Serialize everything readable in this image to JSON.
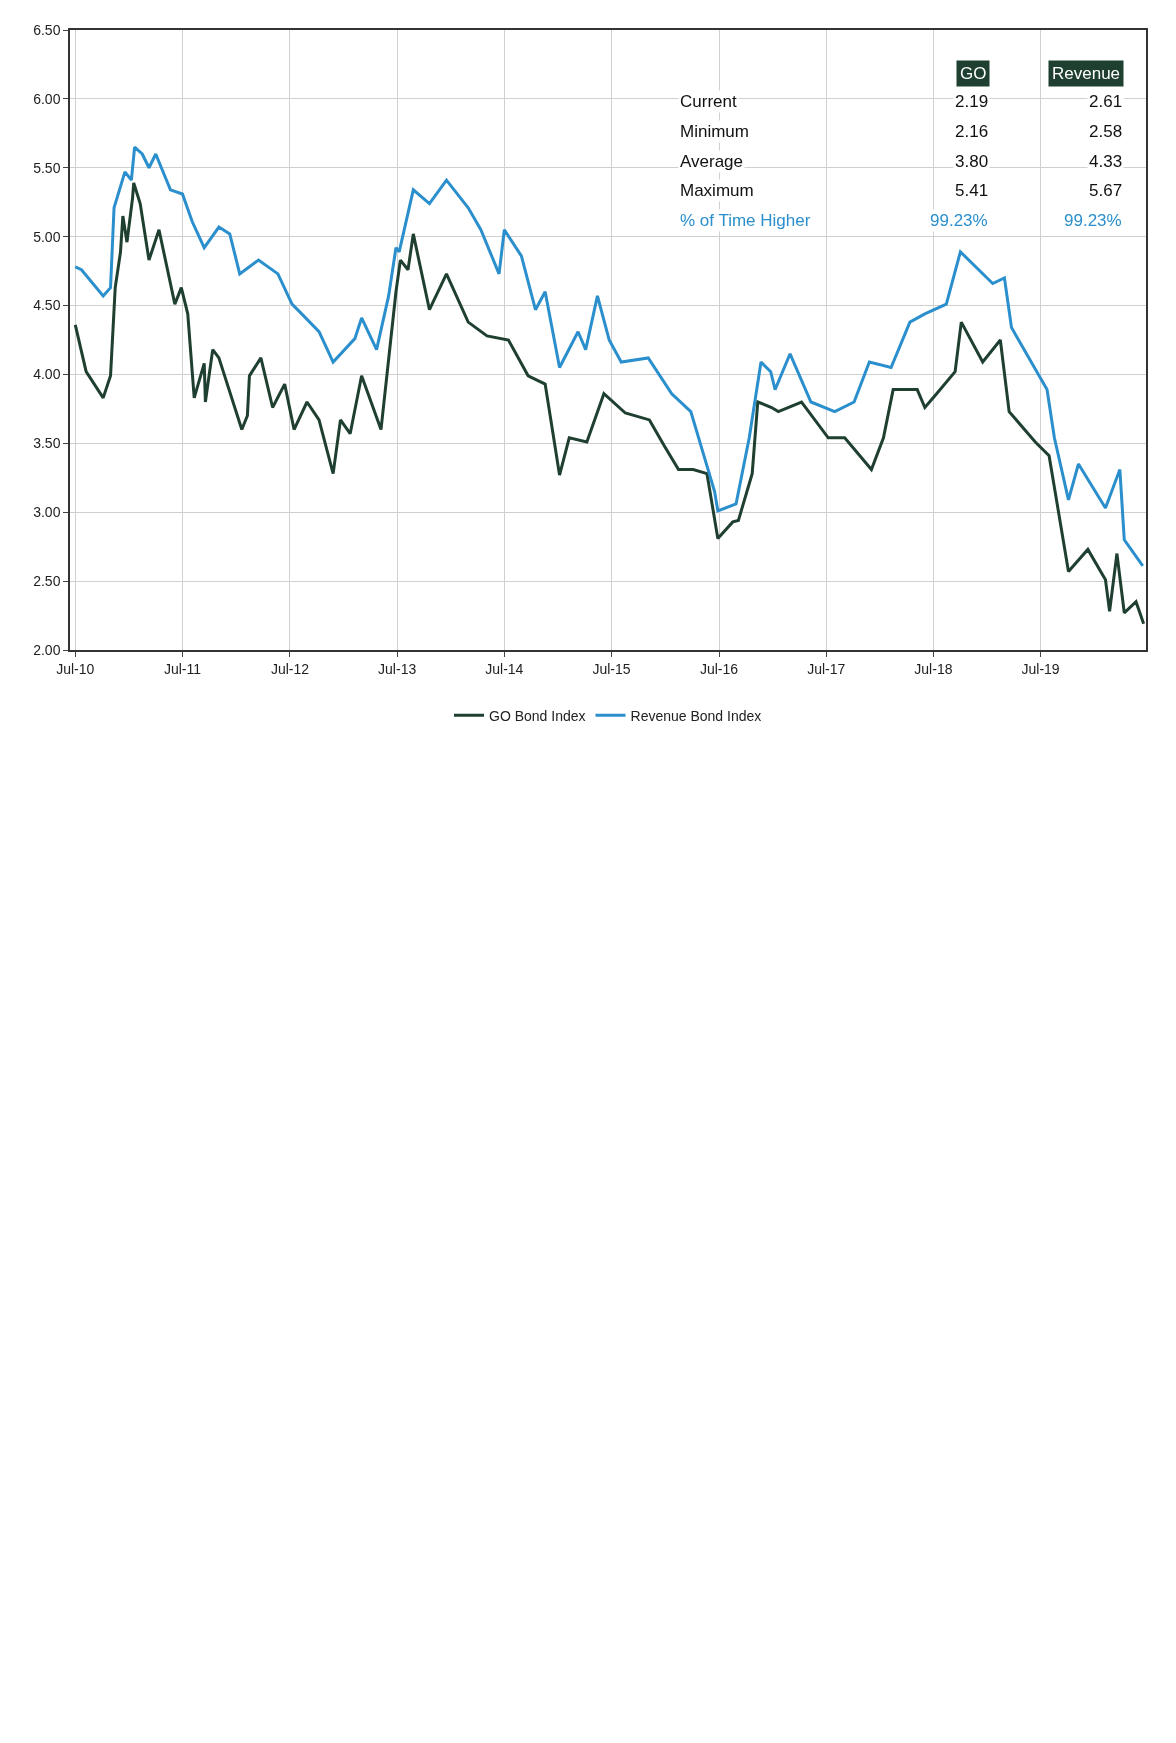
{
  "chart_data": {
    "type": "line",
    "series": [
      {
        "name": "GO Bond Index",
        "color": "#1f4030",
        "x": [
          "2010-07-01",
          "2010-08-07",
          "2010-10-04",
          "2010-10-29",
          "2010-11-14",
          "2010-12-02",
          "2010-12-10",
          "2010-12-24",
          "2011-01-12",
          "2011-01-16",
          "2011-02-07",
          "2011-03-09",
          "2011-04-12",
          "2011-06-05",
          "2011-06-27",
          "2011-07-19",
          "2011-08-10",
          "2011-09-13",
          "2011-09-17",
          "2011-10-12",
          "2011-11-02",
          "2012-01-19",
          "2012-02-07",
          "2012-02-14",
          "2012-03-24",
          "2012-05-03",
          "2012-06-13",
          "2012-07-15",
          "2012-08-28",
          "2012-10-08",
          "2012-11-25",
          "2012-12-20",
          "2013-01-22",
          "2013-03-02",
          "2013-05-07",
          "2013-06-27",
          "2013-07-12",
          "2013-08-07",
          "2013-08-25",
          "2013-10-19",
          "2013-12-16",
          "2014-02-28",
          "2014-05-03",
          "2014-07-15",
          "2014-09-20",
          "2014-11-17",
          "2015-01-05",
          "2015-02-07",
          "2015-04-08",
          "2015-06-05",
          "2015-08-17",
          "2015-11-07",
          "2015-12-28",
          "2016-02-14",
          "2016-04-04",
          "2016-05-21",
          "2016-06-27",
          "2016-08-17",
          "2016-09-05",
          "2016-10-22",
          "2016-11-10",
          "2016-12-27",
          "2017-01-19",
          "2017-04-08",
          "2017-07-08",
          "2017-09-02",
          "2017-12-02",
          "2018-01-12",
          "2018-02-14",
          "2018-05-07",
          "2018-06-02",
          "2018-07-12",
          "2018-09-13",
          "2018-10-04",
          "2018-12-16",
          "2019-02-14",
          "2019-03-16",
          "2019-06-13",
          "2019-07-30",
          "2019-10-04",
          "2019-12-09",
          "2020-02-07",
          "2020-02-21",
          "2020-03-17",
          "2020-04-11",
          "2020-05-21",
          "2020-06-16"
        ],
        "values": [
          4.36,
          4.02,
          3.83,
          3.99,
          4.63,
          4.89,
          5.15,
          4.96,
          5.28,
          5.39,
          5.24,
          4.83,
          5.05,
          4.51,
          4.63,
          4.44,
          3.83,
          4.08,
          3.8,
          4.18,
          4.12,
          3.6,
          3.7,
          3.99,
          4.12,
          3.76,
          3.93,
          3.6,
          3.8,
          3.67,
          3.28,
          3.67,
          3.57,
          3.99,
          3.6,
          4.6,
          4.83,
          4.76,
          5.02,
          4.47,
          4.73,
          4.38,
          4.28,
          4.25,
          3.99,
          3.93,
          3.27,
          3.54,
          3.51,
          3.86,
          3.72,
          3.67,
          3.48,
          3.31,
          3.31,
          3.28,
          2.81,
          2.93,
          2.94,
          3.28,
          3.8,
          3.76,
          3.73,
          3.8,
          3.54,
          3.54,
          3.31,
          3.54,
          3.89,
          3.89,
          3.76,
          3.86,
          4.02,
          4.38,
          4.09,
          4.25,
          3.73,
          3.51,
          3.41,
          2.57,
          2.73,
          2.51,
          2.28,
          2.7,
          2.27,
          2.35,
          2.19
        ]
      },
      {
        "name": "Revenue Bond Index",
        "color": "#2a8fcc",
        "x": [
          "2010-07-01",
          "2010-07-22",
          "2010-10-04",
          "2010-10-29",
          "2010-11-10",
          "2010-12-17",
          "2011-01-08",
          "2011-01-19",
          "2011-02-14",
          "2011-03-09",
          "2011-04-01",
          "2011-05-21",
          "2011-07-01",
          "2011-08-03",
          "2011-09-13",
          "2011-11-02",
          "2011-12-09",
          "2012-01-12",
          "2012-03-16",
          "2012-05-21",
          "2012-07-08",
          "2012-08-10",
          "2012-10-08",
          "2012-11-25",
          "2013-02-07",
          "2013-03-02",
          "2013-04-22",
          "2013-06-02",
          "2013-06-27",
          "2013-07-08",
          "2013-08-25",
          "2013-10-19",
          "2013-12-16",
          "2014-02-28",
          "2014-04-12",
          "2014-06-13",
          "2014-07-01",
          "2014-08-28",
          "2014-10-15",
          "2014-11-17",
          "2015-01-05",
          "2015-03-09",
          "2015-04-04",
          "2015-05-14",
          "2015-06-23",
          "2015-08-03",
          "2015-11-03",
          "2016-01-22",
          "2016-03-27",
          "2016-06-16",
          "2016-06-27",
          "2016-08-28",
          "2016-10-12",
          "2016-11-21",
          "2016-12-24",
          "2017-01-08",
          "2017-02-28",
          "2017-05-10",
          "2017-07-30",
          "2017-10-04",
          "2017-11-25",
          "2018-02-07",
          "2018-04-12",
          "2018-06-02",
          "2018-08-14",
          "2018-10-01",
          "2019-01-19",
          "2019-02-28",
          "2019-03-24",
          "2019-07-23",
          "2019-08-17",
          "2019-10-04",
          "2019-11-07",
          "2020-02-07",
          "2020-03-27",
          "2020-04-11",
          "2020-06-13"
        ],
        "values": [
          4.78,
          4.76,
          4.57,
          4.63,
          5.21,
          5.47,
          5.41,
          5.65,
          5.6,
          5.5,
          5.6,
          5.34,
          5.31,
          5.11,
          4.92,
          5.07,
          5.02,
          4.73,
          4.83,
          4.73,
          4.51,
          4.44,
          4.31,
          4.09,
          4.26,
          4.41,
          4.18,
          4.57,
          4.92,
          4.89,
          5.34,
          5.24,
          5.41,
          5.21,
          5.05,
          4.73,
          5.05,
          4.86,
          4.47,
          4.6,
          4.05,
          4.31,
          4.18,
          4.57,
          4.25,
          4.09,
          4.12,
          3.86,
          3.73,
          3.15,
          3.01,
          3.06,
          3.54,
          4.09,
          4.02,
          3.89,
          4.15,
          3.8,
          3.73,
          3.8,
          4.09,
          4.05,
          4.38,
          4.44,
          4.51,
          4.89,
          4.66,
          4.7,
          4.34,
          3.89,
          3.54,
          3.09,
          3.35,
          3.03,
          3.31,
          2.8,
          2.61
        ]
      }
    ],
    "xlim": [
      "2010-06-13",
      "2020-06-24"
    ],
    "xticks": [
      {
        "value": "2010-07-01",
        "label": "Jul-10"
      },
      {
        "value": "2011-07-01",
        "label": "Jul-11"
      },
      {
        "value": "2012-07-01",
        "label": "Jul-12"
      },
      {
        "value": "2013-07-01",
        "label": "Jul-13"
      },
      {
        "value": "2014-07-01",
        "label": "Jul-14"
      },
      {
        "value": "2015-07-01",
        "label": "Jul-15"
      },
      {
        "value": "2016-07-01",
        "label": "Jul-16"
      },
      {
        "value": "2017-07-01",
        "label": "Jul-17"
      },
      {
        "value": "2018-07-01",
        "label": "Jul-18"
      },
      {
        "value": "2019-07-01",
        "label": "Jul-19"
      }
    ],
    "ylim": [
      2.0,
      6.5
    ],
    "yticks": [
      {
        "value": 2,
        "label": "2.00"
      },
      {
        "value": 2.5,
        "label": "2.50"
      },
      {
        "value": 3,
        "label": "3.00"
      },
      {
        "value": 3.5,
        "label": "3.50"
      },
      {
        "value": 4,
        "label": "4.00"
      },
      {
        "value": 4.5,
        "label": "4.50"
      },
      {
        "value": 5,
        "label": "5.00"
      },
      {
        "value": 5.5,
        "label": "5.50"
      },
      {
        "value": 6,
        "label": "6.00"
      },
      {
        "value": 6.5,
        "label": "6.50"
      }
    ],
    "grid": true,
    "legend": "bottom",
    "annotations": [
      "GO",
      "Revenue",
      "Current",
      "2.19",
      "2.61",
      "Minimum",
      "2.16",
      "2.58",
      "Average",
      "3.80",
      "4.33",
      "Maximum",
      "5.41",
      "5.67",
      "% of Time Higher",
      "99.23%",
      "99.23%"
    ]
  }
}
